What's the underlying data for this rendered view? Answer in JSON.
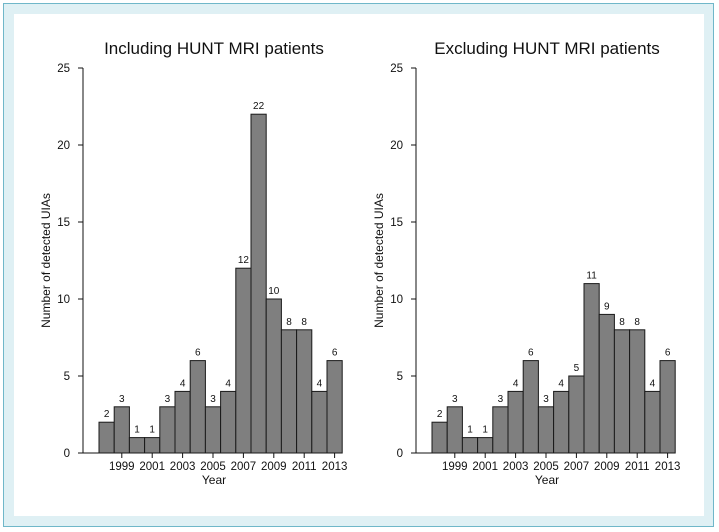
{
  "chart_data": [
    {
      "type": "bar",
      "title": "Including HUNT MRI patients",
      "xlabel": "Year",
      "ylabel": "Number of detected UIAs",
      "ylim": [
        0,
        25
      ],
      "yticks": [
        0,
        5,
        10,
        15,
        20,
        25
      ],
      "x": [
        1998,
        1999,
        2000,
        2001,
        2002,
        2003,
        2004,
        2005,
        2006,
        2007,
        2008,
        2009,
        2010,
        2011,
        2012,
        2013
      ],
      "xticks": [
        1999,
        2001,
        2003,
        2005,
        2007,
        2009,
        2011,
        2013
      ],
      "values": [
        2,
        3,
        1,
        1,
        3,
        4,
        6,
        3,
        4,
        12,
        22,
        10,
        8,
        8,
        4,
        6
      ],
      "grid": false,
      "legend": "none"
    },
    {
      "type": "bar",
      "title": "Excluding HUNT MRI patients",
      "xlabel": "Year",
      "ylabel": "Number of detected UIAs",
      "ylim": [
        0,
        25
      ],
      "yticks": [
        0,
        5,
        10,
        15,
        20,
        25
      ],
      "x": [
        1998,
        1999,
        2000,
        2001,
        2002,
        2003,
        2004,
        2005,
        2006,
        2007,
        2008,
        2009,
        2010,
        2011,
        2012,
        2013
      ],
      "xticks": [
        1999,
        2001,
        2003,
        2005,
        2007,
        2009,
        2011,
        2013
      ],
      "values": [
        2,
        3,
        1,
        1,
        3,
        4,
        6,
        3,
        4,
        5,
        11,
        9,
        8,
        8,
        4,
        6
      ],
      "grid": false,
      "legend": "none"
    }
  ]
}
